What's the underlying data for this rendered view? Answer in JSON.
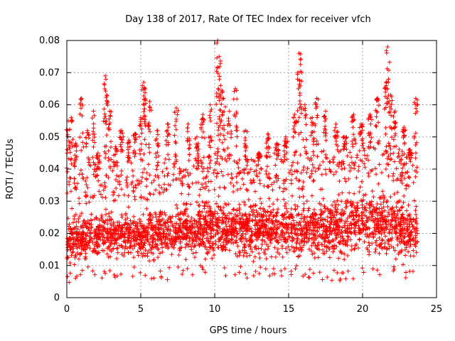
{
  "chart_data": {
    "type": "scatter",
    "title": "Day 138 of 2017, Rate Of TEC Index for receiver vfch",
    "xlabel": "GPS time / hours",
    "ylabel": "ROTI / TECUs",
    "xlim": [
      0,
      25
    ],
    "ylim": [
      0,
      0.08
    ],
    "xticks": [
      0,
      5,
      10,
      15,
      20,
      25
    ],
    "yticks": [
      0,
      0.01,
      0.02,
      0.03,
      0.04,
      0.05,
      0.06,
      0.07,
      0.08
    ],
    "xtick_labels": [
      "0",
      "5",
      "10",
      "15",
      "20",
      "25"
    ],
    "ytick_labels": [
      "0",
      "0.01",
      "0.02",
      "0.03",
      "0.04",
      "0.05",
      "0.06",
      "0.07",
      "0.08"
    ],
    "grid": true,
    "marker": "+",
    "marker_color": "#ff0000",
    "series": [
      {
        "name": "ROTI",
        "x_range": [
          0,
          23.7
        ],
        "baseline_envelope": [
          [
            0,
            0.008,
            0.027
          ],
          [
            2,
            0.009,
            0.03
          ],
          [
            4,
            0.01,
            0.03
          ],
          [
            6,
            0.009,
            0.03
          ],
          [
            8,
            0.01,
            0.032
          ],
          [
            10,
            0.01,
            0.033
          ],
          [
            12,
            0.01,
            0.032
          ],
          [
            14,
            0.01,
            0.033
          ],
          [
            16,
            0.01,
            0.033
          ],
          [
            18,
            0.009,
            0.034
          ],
          [
            20,
            0.01,
            0.038
          ],
          [
            22,
            0.01,
            0.036
          ],
          [
            23.7,
            0.008,
            0.032
          ]
        ],
        "outliers": [
          [
            0.1,
            0.055
          ],
          [
            0.3,
            0.056
          ],
          [
            0.6,
            0.048
          ],
          [
            1.0,
            0.062
          ],
          [
            1.4,
            0.052
          ],
          [
            1.8,
            0.058
          ],
          [
            2.1,
            0.045
          ],
          [
            2.6,
            0.069
          ],
          [
            2.7,
            0.063
          ],
          [
            2.9,
            0.058
          ],
          [
            3.3,
            0.047
          ],
          [
            3.7,
            0.052
          ],
          [
            4.2,
            0.049
          ],
          [
            4.6,
            0.051
          ],
          [
            5.0,
            0.056
          ],
          [
            5.2,
            0.067
          ],
          [
            5.3,
            0.065
          ],
          [
            5.6,
            0.061
          ],
          [
            6.1,
            0.052
          ],
          [
            6.8,
            0.054
          ],
          [
            7.4,
            0.059
          ],
          [
            8.2,
            0.054
          ],
          [
            8.8,
            0.05
          ],
          [
            9.2,
            0.057
          ],
          [
            9.7,
            0.06
          ],
          [
            10.2,
            0.08
          ],
          [
            10.3,
            0.075
          ],
          [
            10.4,
            0.066
          ],
          [
            10.6,
            0.062
          ],
          [
            11.0,
            0.058
          ],
          [
            11.4,
            0.065
          ],
          [
            12.1,
            0.052
          ],
          [
            13.0,
            0.045
          ],
          [
            13.6,
            0.051
          ],
          [
            14.2,
            0.048
          ],
          [
            14.8,
            0.05
          ],
          [
            15.4,
            0.057
          ],
          [
            15.7,
            0.076
          ],
          [
            15.8,
            0.074
          ],
          [
            16.1,
            0.06
          ],
          [
            16.6,
            0.056
          ],
          [
            16.9,
            0.062
          ],
          [
            17.5,
            0.058
          ],
          [
            18.2,
            0.054
          ],
          [
            18.8,
            0.05
          ],
          [
            19.4,
            0.057
          ],
          [
            19.9,
            0.054
          ],
          [
            20.5,
            0.057
          ],
          [
            21.0,
            0.062
          ],
          [
            21.6,
            0.066
          ],
          [
            21.7,
            0.078
          ],
          [
            21.9,
            0.063
          ],
          [
            22.2,
            0.058
          ],
          [
            22.8,
            0.053
          ],
          [
            23.2,
            0.046
          ],
          [
            23.6,
            0.062
          ]
        ]
      }
    ]
  }
}
